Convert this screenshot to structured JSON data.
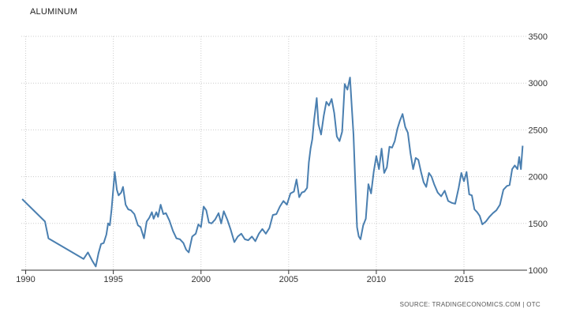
{
  "chart_data": {
    "type": "line",
    "title": "ALUMINUM",
    "source": "SOURCE: TRADINGECONOMICS.COM | OTC",
    "xlim": [
      1989.75,
      2018.6
    ],
    "ylim": [
      1000,
      3500
    ],
    "x_ticks": [
      1990,
      1995,
      2000,
      2005,
      2010,
      2015
    ],
    "y_ticks": [
      1000,
      1500,
      2000,
      2500,
      3000,
      3500
    ],
    "grid": true,
    "legend": "none",
    "line_color": "#4a7fb0",
    "series": [
      {
        "x": [
          1989.8,
          1991.1,
          1991.3,
          1993.3,
          1993.55,
          1993.8,
          1994.0,
          1994.15,
          1994.3,
          1994.45,
          1994.6,
          1994.7,
          1994.8,
          1994.9,
          1995.0,
          1995.08,
          1995.2,
          1995.3,
          1995.45,
          1995.55,
          1995.7,
          1995.85,
          1996.0,
          1996.2,
          1996.4,
          1996.55,
          1996.75,
          1996.9,
          1997.05,
          1997.2,
          1997.3,
          1997.45,
          1997.55,
          1997.7,
          1997.85,
          1998.0,
          1998.2,
          1998.4,
          1998.6,
          1998.8,
          1999.0,
          1999.15,
          1999.3,
          1999.5,
          1999.7,
          1999.85,
          2000.0,
          2000.15,
          2000.3,
          2000.45,
          2000.6,
          2000.8,
          2001.0,
          2001.15,
          2001.3,
          2001.5,
          2001.7,
          2001.9,
          2002.1,
          2002.3,
          2002.5,
          2002.7,
          2002.9,
          2003.1,
          2003.3,
          2003.5,
          2003.7,
          2003.9,
          2004.1,
          2004.3,
          2004.5,
          2004.7,
          2004.9,
          2005.1,
          2005.3,
          2005.45,
          2005.6,
          2005.75,
          2005.9,
          2006.05,
          2006.15,
          2006.25,
          2006.35,
          2006.45,
          2006.6,
          2006.7,
          2006.85,
          2007.0,
          2007.15,
          2007.3,
          2007.45,
          2007.6,
          2007.75,
          2007.9,
          2008.05,
          2008.2,
          2008.35,
          2008.5,
          2008.6,
          2008.7,
          2008.8,
          2008.9,
          2009.0,
          2009.1,
          2009.25,
          2009.4,
          2009.55,
          2009.7,
          2009.85,
          2010.0,
          2010.15,
          2010.3,
          2010.45,
          2010.6,
          2010.75,
          2010.9,
          2011.05,
          2011.2,
          2011.35,
          2011.5,
          2011.65,
          2011.8,
          2011.95,
          2012.1,
          2012.25,
          2012.4,
          2012.55,
          2012.7,
          2012.85,
          2013.0,
          2013.15,
          2013.3,
          2013.5,
          2013.7,
          2013.9,
          2014.1,
          2014.3,
          2014.5,
          2014.7,
          2014.85,
          2015.0,
          2015.15,
          2015.3,
          2015.45,
          2015.6,
          2015.75,
          2015.9,
          2016.05,
          2016.25,
          2016.45,
          2016.65,
          2016.85,
          2017.05,
          2017.25,
          2017.45,
          2017.6,
          2017.75,
          2017.9,
          2018.05,
          2018.15,
          2018.25,
          2018.35
        ],
        "values": [
          1760,
          1520,
          1340,
          1120,
          1190,
          1100,
          1040,
          1180,
          1280,
          1290,
          1380,
          1500,
          1480,
          1650,
          1870,
          2050,
          1860,
          1800,
          1830,
          1890,
          1700,
          1650,
          1640,
          1600,
          1480,
          1460,
          1340,
          1520,
          1560,
          1620,
          1550,
          1620,
          1570,
          1700,
          1600,
          1610,
          1530,
          1420,
          1340,
          1330,
          1290,
          1220,
          1190,
          1360,
          1390,
          1490,
          1460,
          1680,
          1640,
          1510,
          1500,
          1540,
          1610,
          1500,
          1630,
          1540,
          1430,
          1300,
          1360,
          1390,
          1330,
          1320,
          1360,
          1310,
          1390,
          1440,
          1390,
          1450,
          1590,
          1600,
          1680,
          1740,
          1700,
          1820,
          1840,
          1970,
          1780,
          1830,
          1840,
          1880,
          2150,
          2300,
          2400,
          2600,
          2840,
          2560,
          2450,
          2650,
          2800,
          2760,
          2830,
          2680,
          2430,
          2380,
          2480,
          2990,
          2930,
          3060,
          2750,
          2450,
          1930,
          1460,
          1360,
          1330,
          1480,
          1550,
          1920,
          1820,
          2050,
          2220,
          2080,
          2300,
          2040,
          2100,
          2320,
          2310,
          2380,
          2510,
          2600,
          2670,
          2530,
          2470,
          2250,
          2080,
          2200,
          2180,
          2050,
          1940,
          1890,
          2040,
          2000,
          1920,
          1830,
          1790,
          1850,
          1740,
          1720,
          1710,
          1880,
          2040,
          1950,
          2050,
          1810,
          1800,
          1650,
          1620,
          1580,
          1490,
          1520,
          1570,
          1610,
          1640,
          1700,
          1860,
          1900,
          1910,
          2080,
          2120,
          2080,
          2210,
          2080,
          2330
        ]
      }
    ]
  }
}
